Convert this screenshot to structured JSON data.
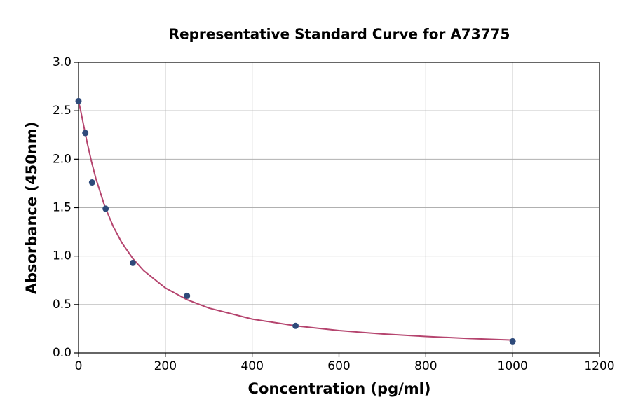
{
  "chart_data": {
    "type": "scatter",
    "title": "Representative Standard Curve for A73775",
    "x_label": "Concentration (pg/ml)",
    "y_label": "Absorbance (450nm)",
    "xlim": [
      0,
      1200
    ],
    "xticks": [
      0,
      200,
      400,
      600,
      800,
      1000,
      1200
    ],
    "ylim": [
      0,
      3.0
    ],
    "yticks": [
      {
        "value": 0,
        "label": "0.0"
      },
      {
        "value": 0.5,
        "label": "0.5"
      },
      {
        "value": 1,
        "label": "1.0"
      },
      {
        "value": 1.5,
        "label": "1.5"
      },
      {
        "value": 2,
        "label": "2.0"
      },
      {
        "value": 2.5,
        "label": "2.5"
      },
      {
        "value": 3,
        "label": "3.0"
      }
    ],
    "grid": true,
    "series": [
      {
        "type": "line",
        "color": "#b5446e",
        "x": [
          0,
          5,
          10,
          20,
          30,
          40,
          60,
          80,
          100,
          125,
          150,
          200,
          250,
          300,
          400,
          500,
          600,
          700,
          800,
          900,
          1000
        ],
        "values": [
          2.6,
          2.5,
          2.388,
          2.169,
          1.973,
          1.8,
          1.52,
          1.305,
          1.137,
          0.975,
          0.85,
          0.671,
          0.55,
          0.464,
          0.35,
          0.28,
          0.231,
          0.196,
          0.17,
          0.149,
          0.133
        ]
      },
      {
        "type": "scatter",
        "color": "#2e4a7a",
        "x": [
          0,
          15.625,
          31.25,
          62.5,
          125,
          250,
          500,
          1000
        ],
        "values": [
          2.6,
          2.27,
          1.76,
          1.49,
          0.93,
          0.59,
          0.28,
          0.12
        ]
      }
    ]
  }
}
